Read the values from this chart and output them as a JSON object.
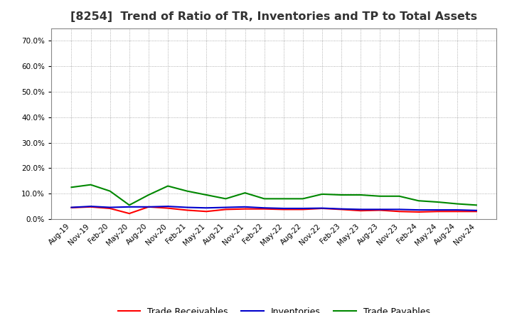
{
  "title": "[8254]  Trend of Ratio of TR, Inventories and TP to Total Assets",
  "x_labels": [
    "Aug-19",
    "Nov-19",
    "Feb-20",
    "May-20",
    "Aug-20",
    "Nov-20",
    "Feb-21",
    "May-21",
    "Aug-21",
    "Nov-21",
    "Feb-22",
    "May-22",
    "Aug-22",
    "Nov-22",
    "Feb-23",
    "May-23",
    "Aug-23",
    "Nov-23",
    "Feb-24",
    "May-24",
    "Aug-24",
    "Nov-24"
  ],
  "trade_receivables": [
    0.045,
    0.048,
    0.042,
    0.022,
    0.048,
    0.043,
    0.035,
    0.03,
    0.038,
    0.04,
    0.04,
    0.038,
    0.038,
    0.042,
    0.038,
    0.033,
    0.035,
    0.03,
    0.028,
    0.03,
    0.03,
    0.03
  ],
  "inventories": [
    0.046,
    0.05,
    0.046,
    0.048,
    0.048,
    0.05,
    0.046,
    0.044,
    0.046,
    0.048,
    0.044,
    0.042,
    0.042,
    0.043,
    0.04,
    0.038,
    0.038,
    0.038,
    0.036,
    0.036,
    0.036,
    0.034
  ],
  "trade_payables": [
    0.125,
    0.135,
    0.11,
    0.055,
    0.095,
    0.13,
    0.11,
    0.095,
    0.08,
    0.103,
    0.08,
    0.08,
    0.08,
    0.098,
    0.095,
    0.095,
    0.09,
    0.09,
    0.072,
    0.067,
    0.06,
    0.055
  ],
  "tr_color": "#ff0000",
  "inv_color": "#0000cc",
  "tp_color": "#008800",
  "ylim": [
    0.0,
    0.75
  ],
  "yticks": [
    0.0,
    0.1,
    0.2,
    0.3,
    0.4,
    0.5,
    0.6,
    0.7
  ],
  "background_color": "#ffffff",
  "grid_color": "#999999",
  "title_fontsize": 11.5,
  "tick_fontsize": 7.5,
  "legend_fontsize": 9
}
